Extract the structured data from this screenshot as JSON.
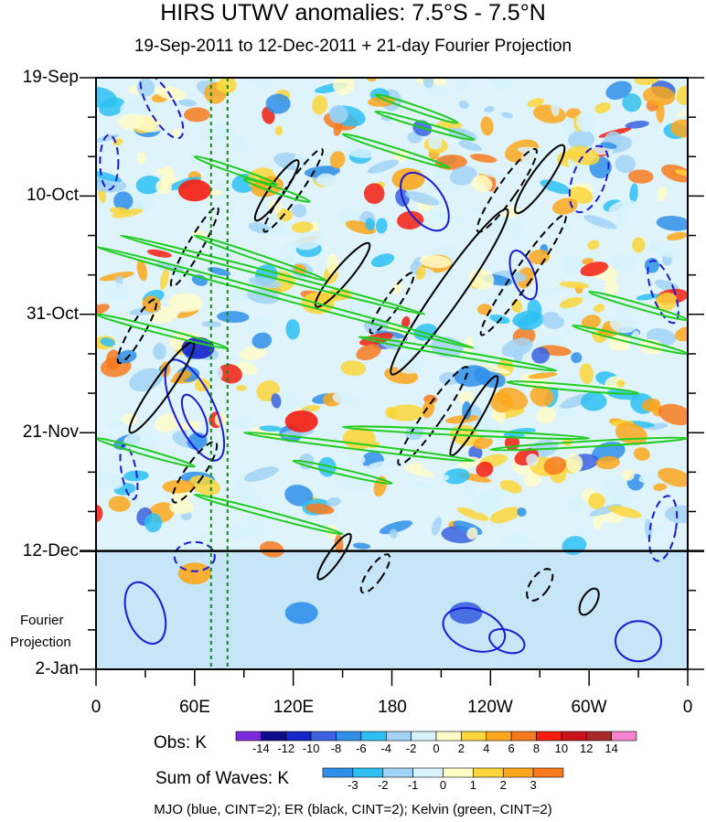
{
  "chart_data": {
    "type": "heatmap",
    "title": "HIRS UTWV anomalies: 7.5°S - 7.5°N",
    "subtitle": "19-Sep-2011 to 12-Dec-2011 + 21-day Fourier Projection",
    "x_axis": {
      "ticks": [
        "0",
        "60E",
        "120E",
        "180",
        "120W",
        "60W",
        "0"
      ],
      "range_deg_east": [
        0,
        360
      ]
    },
    "y_axis": {
      "ticks": [
        "19-Sep",
        "10-Oct",
        "31-Oct",
        "21-Nov",
        "12-Dec",
        "2-Jan"
      ],
      "range_days_from_19Sep": [
        0,
        105
      ],
      "projection_start": "12-Dec"
    },
    "projection_label": [
      "Fourier",
      "Projection"
    ],
    "reference_lines_lon": [
      70,
      80
    ],
    "obs_colorbar": {
      "label": "Obs: K",
      "ticks": [
        "-14",
        "-12",
        "-10",
        "-8",
        "-6",
        "-4",
        "-2",
        "0",
        "2",
        "4",
        "6",
        "8",
        "10",
        "12",
        "14"
      ],
      "colors": [
        "#7b2bdc",
        "#0c0c8c",
        "#1525c8",
        "#3a62de",
        "#2f8fe9",
        "#2ec0f2",
        "#a2d2f6",
        "#d8f2fc",
        "#fffcc8",
        "#fcd63a",
        "#fca71c",
        "#f77a1d",
        "#f51d0f",
        "#c8121d",
        "#a8282c",
        "#f583d0"
      ]
    },
    "waves_colorbar": {
      "label": "Sum of Waves: K",
      "ticks": [
        "-3",
        "-2",
        "-1",
        "0",
        "1",
        "2",
        "3"
      ],
      "colors": [
        "#2f8fe9",
        "#2ec0f2",
        "#a2d2f6",
        "#d8f2fc",
        "#fffcc8",
        "#fcd63a",
        "#fca71c",
        "#f77a1d"
      ]
    },
    "contours": {
      "MJO": {
        "color": "#1a1ad6",
        "cint_K": 2
      },
      "ER": {
        "color": "#000000",
        "cint_K": 2
      },
      "Kelvin": {
        "color": "#22cc22",
        "cint_K": 2
      }
    },
    "footnote": "MJO (blue, CINT=2); ER (black, CINT=2); Kelvin (green, CINT=2)"
  }
}
